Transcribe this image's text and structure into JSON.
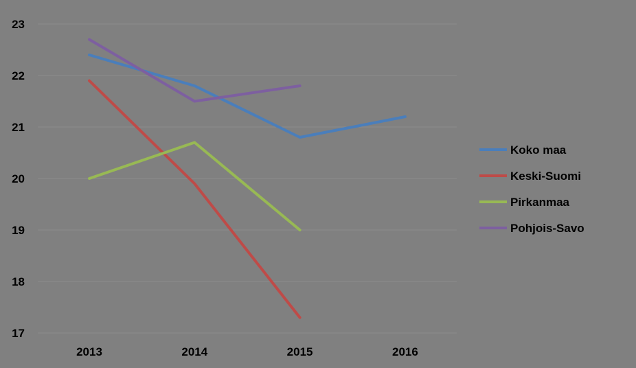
{
  "chart_data": {
    "type": "line",
    "categories": [
      "2013",
      "2014",
      "2015",
      "2016"
    ],
    "ylim": [
      17,
      23
    ],
    "yticks": [
      17,
      18,
      19,
      20,
      21,
      22,
      23
    ],
    "grid": true,
    "legend_position": "right",
    "series": [
      {
        "name": "Koko maa",
        "color": "#4a7ebb",
        "values": [
          22.4,
          21.8,
          20.8,
          21.2
        ]
      },
      {
        "name": "Keski-Suomi",
        "color": "#be4b48",
        "values": [
          21.9,
          19.9,
          17.3,
          null
        ]
      },
      {
        "name": "Pirkanmaa",
        "color": "#98b954",
        "values": [
          20.0,
          20.7,
          19.0,
          null
        ]
      },
      {
        "name": "Pohjois-Savo",
        "color": "#7d5fa0",
        "values": [
          22.7,
          21.5,
          21.8,
          null
        ]
      }
    ]
  }
}
